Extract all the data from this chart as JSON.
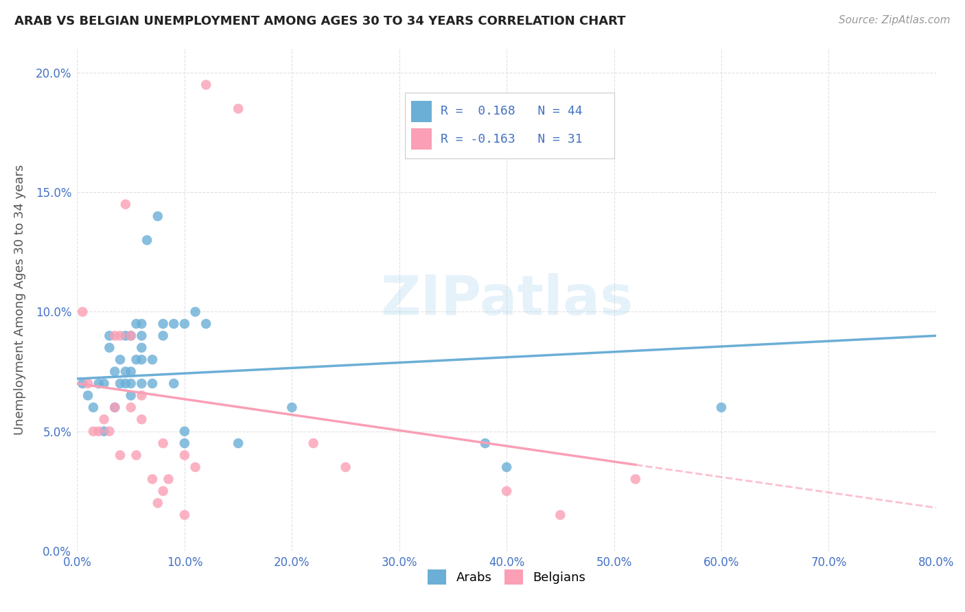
{
  "title": "ARAB VS BELGIAN UNEMPLOYMENT AMONG AGES 30 TO 34 YEARS CORRELATION CHART",
  "source": "Source: ZipAtlas.com",
  "xlabel_vals": [
    0,
    10,
    20,
    30,
    40,
    50,
    60,
    70,
    80
  ],
  "ylabel_vals": [
    0,
    5,
    10,
    15,
    20
  ],
  "ylabel_label": "Unemployment Among Ages 30 to 34 years",
  "xlim": [
    0,
    80
  ],
  "ylim": [
    0,
    21
  ],
  "arab_color": "#6baed6",
  "belgian_color": "#fa9fb5",
  "arab_R": 0.168,
  "arab_N": 44,
  "belgian_R": -0.163,
  "belgian_N": 31,
  "watermark": "ZIPatlas",
  "arab_scatter_x": [
    0.5,
    1,
    1.5,
    2,
    2.5,
    2.5,
    3,
    3,
    3.5,
    3.5,
    4,
    4,
    4.5,
    4.5,
    4.5,
    5,
    5,
    5,
    5,
    5.5,
    5.5,
    6,
    6,
    6,
    6,
    6,
    6.5,
    7,
    7,
    7.5,
    8,
    8,
    9,
    9,
    10,
    10,
    10,
    11,
    12,
    15,
    20,
    38,
    40,
    60
  ],
  "arab_scatter_y": [
    7,
    6.5,
    6,
    7,
    7,
    5,
    8.5,
    9,
    7.5,
    6,
    7,
    8,
    7,
    9,
    7.5,
    9,
    7.5,
    6.5,
    7,
    8,
    9.5,
    8.5,
    9,
    9.5,
    8,
    7,
    13,
    8,
    7,
    14,
    9,
    9.5,
    9.5,
    7,
    9.5,
    4.5,
    5,
    10,
    9.5,
    4.5,
    6,
    4.5,
    3.5,
    6
  ],
  "belgian_scatter_x": [
    0.5,
    1,
    1.5,
    2,
    2.5,
    3,
    3.5,
    3.5,
    4,
    4,
    4.5,
    5,
    5,
    5.5,
    6,
    6,
    7,
    7.5,
    8,
    8,
    8.5,
    10,
    10,
    11,
    12,
    15,
    22,
    25,
    40,
    45,
    52
  ],
  "belgian_scatter_y": [
    10,
    7,
    5,
    5,
    5.5,
    5,
    6,
    9,
    4,
    9,
    14.5,
    6,
    9,
    4,
    5.5,
    6.5,
    3,
    2,
    4.5,
    2.5,
    3,
    4,
    1.5,
    3.5,
    19.5,
    18.5,
    4.5,
    3.5,
    2.5,
    1.5,
    3
  ],
  "background_color": "#ffffff",
  "grid_color": "#e0e0e0",
  "arab_trend_x0": 0,
  "arab_trend_y0": 7.2,
  "arab_trend_x1": 80,
  "arab_trend_y1": 9.0,
  "belgian_trend_x0": 0,
  "belgian_trend_y0": 7.0,
  "belgian_trend_x1": 52,
  "belgian_trend_y1": 3.6,
  "belgian_dash_x0": 52,
  "belgian_dash_y0": 3.6,
  "belgian_dash_x1": 80,
  "belgian_dash_y1": 1.8
}
